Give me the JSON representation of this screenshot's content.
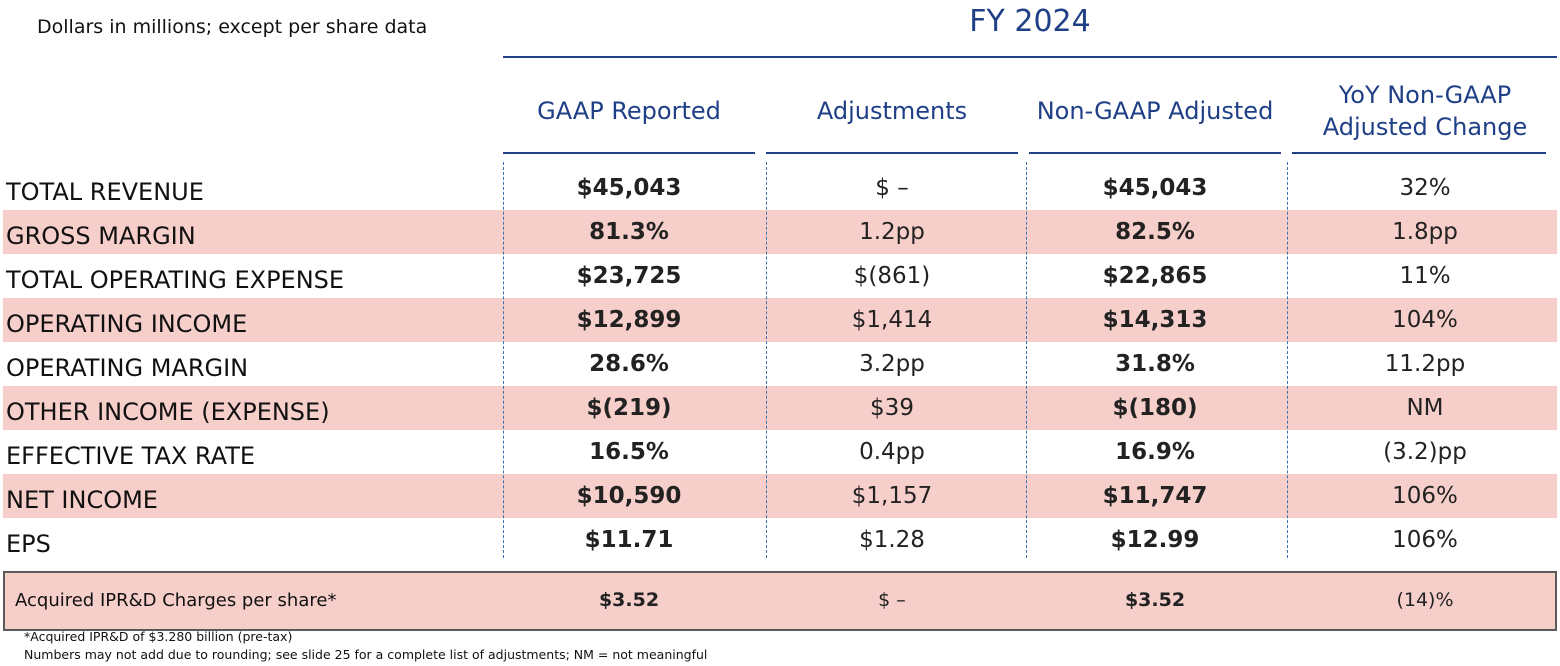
{
  "header": {
    "note": "Dollars in millions; except per share data",
    "fiscal_year": "FY 2024"
  },
  "columns": [
    {
      "label": "GAAP Reported"
    },
    {
      "label": "Adjustments"
    },
    {
      "label": "Non-GAAP Adjusted"
    },
    {
      "label": "YoY Non-GAAP\nAdjusted Change"
    }
  ],
  "rows": [
    {
      "label": "TOTAL REVENUE",
      "gaap": "$45,043",
      "adjustments": "$ –",
      "non_gaap": "$45,043",
      "yoy": "32%",
      "shaded": false
    },
    {
      "label": "GROSS MARGIN",
      "gaap": "81.3%",
      "adjustments": "1.2pp",
      "non_gaap": "82.5%",
      "yoy": "1.8pp",
      "shaded": true
    },
    {
      "label": "TOTAL OPERATING EXPENSE",
      "gaap": "$23,725",
      "adjustments": "$(861)",
      "non_gaap": "$22,865",
      "yoy": "11%",
      "shaded": false
    },
    {
      "label": "OPERATING INCOME",
      "gaap": "$12,899",
      "adjustments": "$1,414",
      "non_gaap": "$14,313",
      "yoy": "104%",
      "shaded": true
    },
    {
      "label": "OPERATING MARGIN",
      "gaap": "28.6%",
      "adjustments": "3.2pp",
      "non_gaap": "31.8%",
      "yoy": "11.2pp",
      "shaded": false
    },
    {
      "label": "OTHER INCOME (EXPENSE)",
      "gaap": "$(219)",
      "adjustments": "$39",
      "non_gaap": "$(180)",
      "yoy": "NM",
      "shaded": true
    },
    {
      "label": "EFFECTIVE TAX RATE",
      "gaap": "16.5%",
      "adjustments": "0.4pp",
      "non_gaap": "16.9%",
      "yoy": "(3.2)pp",
      "shaded": false
    },
    {
      "label": "NET INCOME",
      "gaap": "$10,590",
      "adjustments": "$1,157",
      "non_gaap": "$11,747",
      "yoy": "106%",
      "shaded": true
    },
    {
      "label": "EPS",
      "gaap": "$11.71",
      "adjustments": "$1.28",
      "non_gaap": "$12.99",
      "yoy": "106%",
      "shaded": false
    }
  ],
  "ipr_row": {
    "label": "Acquired IPR&D Charges per share*",
    "gaap": "$3.52",
    "adjustments": "$ –",
    "non_gaap": "$3.52",
    "yoy": "(14)%"
  },
  "footnotes": [
    "*Acquired IPR&D of $3.280 billion (pre-tax)",
    "Numbers may not add due to rounding; see slide 25 for a complete list of adjustments; NM = not meaningful"
  ],
  "colors": {
    "header_blue": "#1f3f86",
    "row_shade": "#f7cfca"
  }
}
